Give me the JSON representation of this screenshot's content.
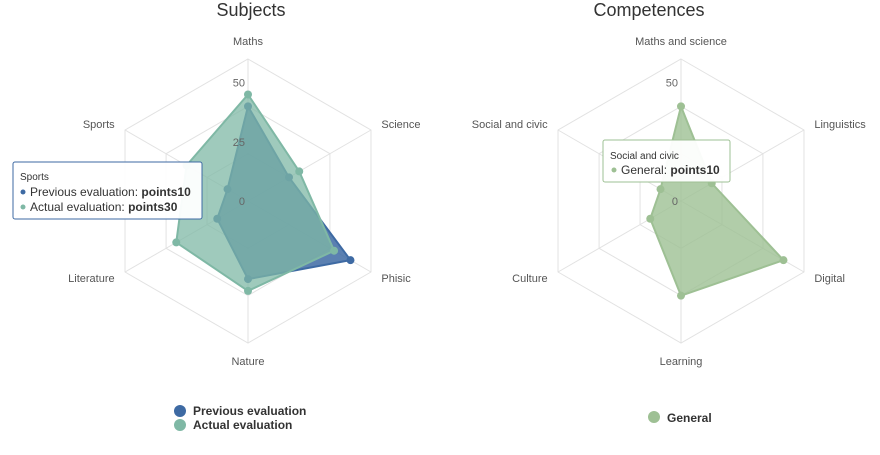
{
  "colors": {
    "previous": "#3e6aa3",
    "actual": "#7fb8a5",
    "general": "#9ec094",
    "grid": "#e2e2e2"
  },
  "chart_data": [
    {
      "type": "radar",
      "title": "Subjects",
      "axes": [
        "Maths",
        "Science",
        "Phisic",
        "Nature",
        "Literature",
        "Sports"
      ],
      "ticks": [
        0,
        25,
        50
      ],
      "ylim": [
        0,
        60
      ],
      "grid": true,
      "legend_position": "bottom",
      "series": [
        {
          "name": "Previous evaluation",
          "values": [
            40,
            20,
            50,
            33,
            15,
            10
          ]
        },
        {
          "name": "Actual evaluation",
          "values": [
            45,
            25,
            42,
            38,
            35,
            30
          ]
        }
      ],
      "tooltip": {
        "header": "Sports",
        "rows": [
          {
            "label": "Previous evaluation: ",
            "value": "points10"
          },
          {
            "label": "Actual evaluation: ",
            "value": "points30"
          }
        ]
      }
    },
    {
      "type": "radar",
      "title": "Competences",
      "axes": [
        "Maths and science",
        "Linguistics",
        "Digital",
        "Learning",
        "Culture",
        "Social and civic"
      ],
      "ticks": [
        0,
        50
      ],
      "ylim": [
        0,
        60
      ],
      "grid": true,
      "legend_position": "bottom",
      "series": [
        {
          "name": "General",
          "values": [
            40,
            15,
            50,
            40,
            15,
            10
          ]
        }
      ],
      "tooltip": {
        "header": "Social and civic",
        "rows": [
          {
            "label": "General: ",
            "value": "points10"
          }
        ]
      }
    }
  ]
}
